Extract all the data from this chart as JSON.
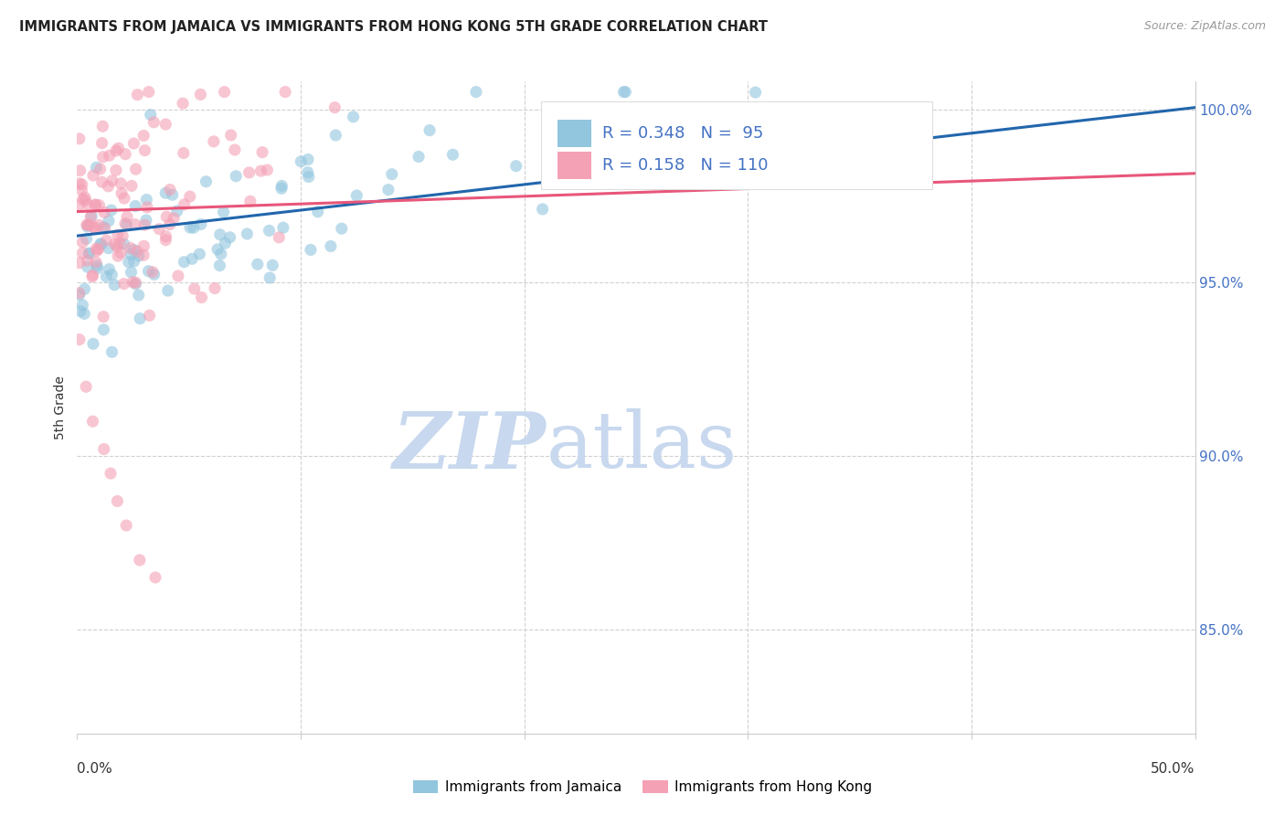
{
  "title": "IMMIGRANTS FROM JAMAICA VS IMMIGRANTS FROM HONG KONG 5TH GRADE CORRELATION CHART",
  "source": "Source: ZipAtlas.com",
  "ylabel": "5th Grade",
  "R_blue": 0.348,
  "N_blue": 95,
  "R_pink": 0.158,
  "N_pink": 110,
  "color_blue": "#92c5de",
  "color_pink": "#f4a0b5",
  "line_color_blue": "#2166ac",
  "line_color_pink": "#e8567a",
  "watermark_zip": "ZIP",
  "watermark_atlas": "atlas",
  "watermark_color_zip": "#c8d8ee",
  "watermark_color_atlas": "#c8d8ee",
  "legend_label_blue": "Immigrants from Jamaica",
  "legend_label_pink": "Immigrants from Hong Kong",
  "x_lim": [
    0.0,
    0.5
  ],
  "y_lim": [
    0.82,
    1.008
  ],
  "y_ticks": [
    0.85,
    0.9,
    0.95,
    1.0
  ],
  "y_tick_labels": [
    "85.0%",
    "90.0%",
    "95.0%",
    "100.0%"
  ],
  "blue_line_x0": 0.0,
  "blue_line_y0": 0.9635,
  "blue_line_x1": 0.5,
  "blue_line_y1": 1.0005,
  "pink_line_x0": 0.0,
  "pink_line_y0": 0.9705,
  "pink_line_x1": 0.5,
  "pink_line_y1": 0.9815,
  "grid_color": "#d0d0d0",
  "spine_color": "#cccccc"
}
